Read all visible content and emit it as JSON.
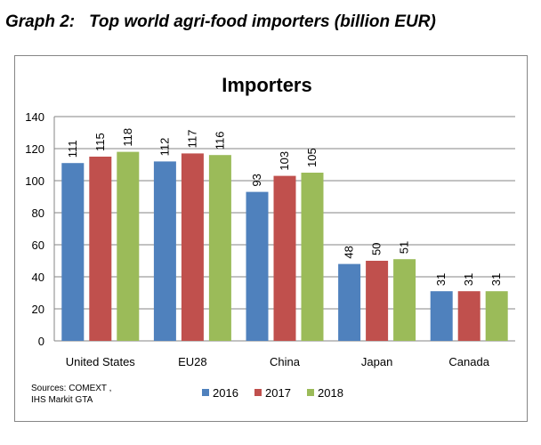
{
  "caption": "Graph 2:   Top world agri-food importers (billion EUR)",
  "sources": [
    "Sources: COMEXT ,",
    "IHS Markit GTA"
  ],
  "colors": {
    "2016": "#4F81BD",
    "2017": "#C0504D",
    "2018": "#9BBB59"
  },
  "chart_data": {
    "type": "bar",
    "title": "Importers",
    "categories": [
      "United States",
      "EU28",
      "China",
      "Japan",
      "Canada"
    ],
    "series": [
      {
        "name": "2016",
        "values": [
          111,
          112,
          93,
          48,
          31
        ]
      },
      {
        "name": "2017",
        "values": [
          115,
          117,
          103,
          50,
          31
        ]
      },
      {
        "name": "2018",
        "values": [
          118,
          116,
          105,
          51,
          31
        ]
      }
    ],
    "data_labels": [
      [
        "111",
        "112",
        "93",
        "48",
        "31"
      ],
      [
        "115",
        "117",
        "103",
        "50",
        "31"
      ],
      [
        "118",
        "116",
        "105",
        "51",
        "31"
      ]
    ],
    "ylim": [
      0,
      140
    ],
    "yticks": [
      "0",
      "20",
      "40",
      "60",
      "80",
      "100",
      "120",
      "140"
    ],
    "grid": true,
    "legend": "bottom"
  }
}
